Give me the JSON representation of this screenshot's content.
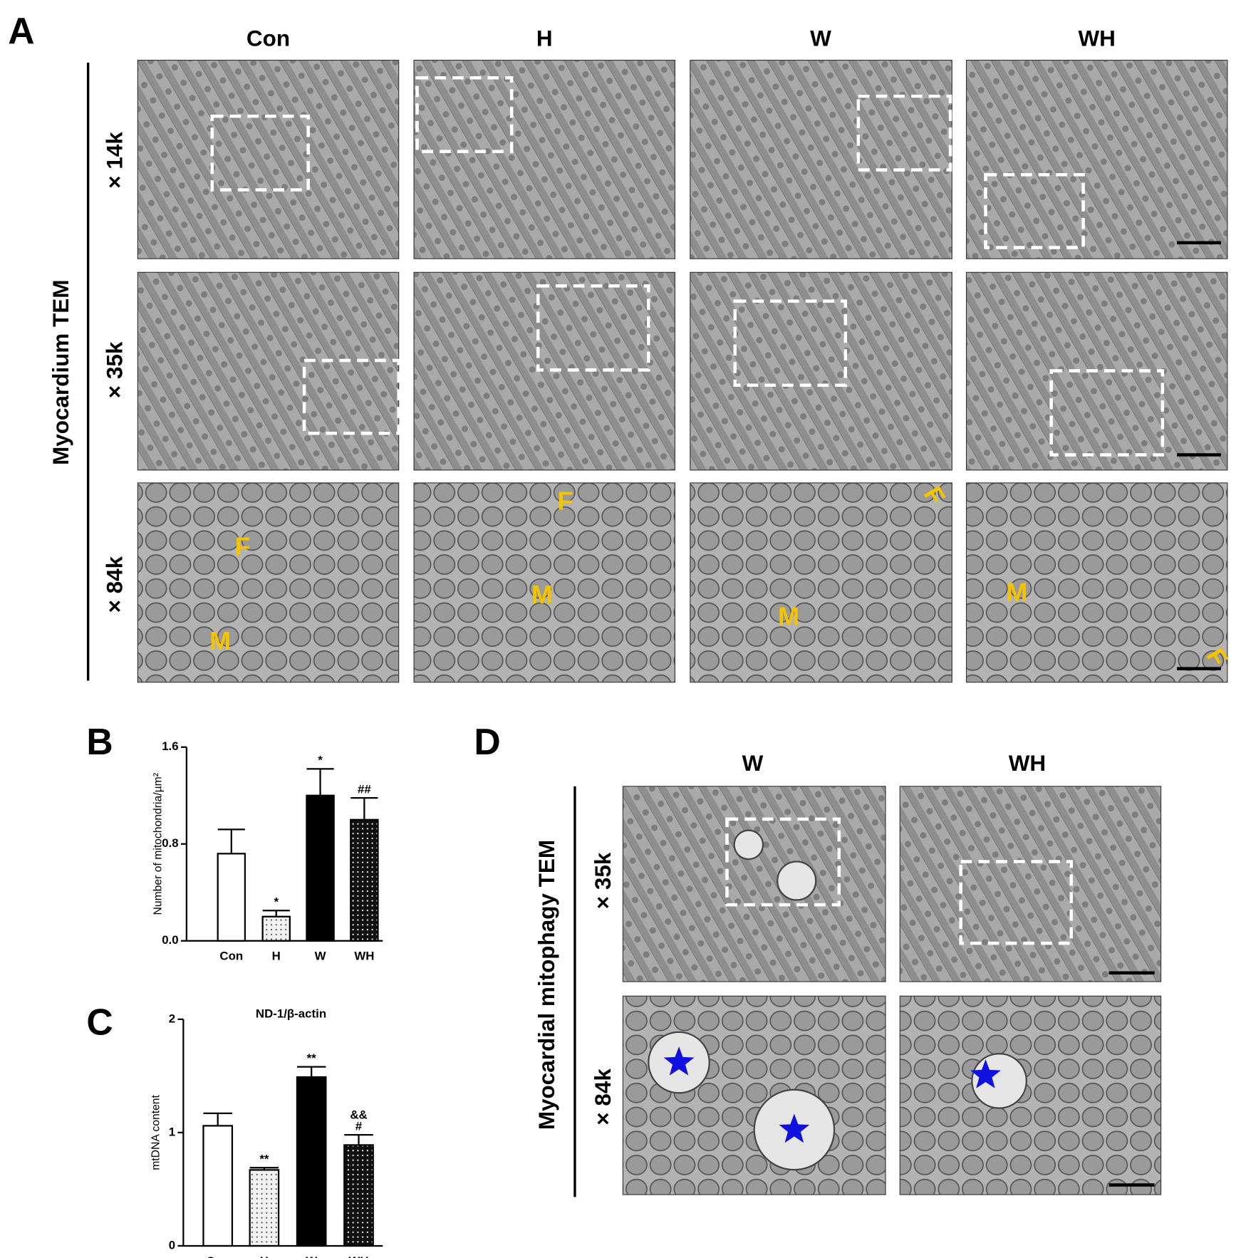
{
  "panels": {
    "a": "A",
    "b": "B",
    "c": "C",
    "d": "D"
  },
  "panel_a": {
    "columns": [
      "Con",
      "H",
      "W",
      "WH"
    ],
    "rows": [
      "× 14k",
      "× 35k",
      "× 84k"
    ],
    "side_label": "Myocardium TEM",
    "image_labels": [
      [
        "F",
        "M"
      ],
      [
        "F",
        "M"
      ],
      [
        "F",
        "M"
      ],
      [
        "M",
        "F"
      ]
    ]
  },
  "panel_d": {
    "columns": [
      "W",
      "WH"
    ],
    "rows": [
      "× 35k",
      "× 84k"
    ],
    "side_label": "Myocardial mitophagy TEM"
  },
  "chart_data": [
    {
      "type": "bar",
      "y_label": "Number of mitochondria/µm²",
      "categories": [
        "Con",
        "H",
        "W",
        "WH"
      ],
      "values": [
        0.72,
        0.2,
        1.2,
        1.0
      ],
      "errors": [
        0.2,
        0.05,
        0.22,
        0.18
      ],
      "colors": [
        "#ffffff",
        "#f2f2f2",
        "#000000",
        "#111111"
      ],
      "patterns": [
        null,
        "dots",
        null,
        "dots"
      ],
      "annotations": [
        null,
        [
          "*"
        ],
        [
          "*"
        ],
        [
          "##"
        ]
      ],
      "ylim": [
        0,
        1.6
      ],
      "yticks": [
        {
          "value": 0,
          "label": "0.0"
        },
        0.8,
        1.6
      ]
    },
    {
      "type": "bar",
      "title": "ND-1/β-actin",
      "y_label": "mtDNA content",
      "categories": [
        "Con",
        "H",
        "W",
        "WH"
      ],
      "values": [
        1.06,
        0.67,
        1.49,
        0.89
      ],
      "errors": [
        0.11,
        0.02,
        0.09,
        0.09
      ],
      "colors": [
        "#ffffff",
        "#f2f2f2",
        "#000000",
        "#111111"
      ],
      "patterns": [
        null,
        "dots",
        null,
        "dots"
      ],
      "annotations": [
        null,
        [
          "**"
        ],
        [
          "**"
        ],
        [
          "&&",
          "#"
        ]
      ],
      "ylim": [
        0,
        2
      ],
      "yticks": [
        0,
        1,
        2
      ]
    }
  ]
}
